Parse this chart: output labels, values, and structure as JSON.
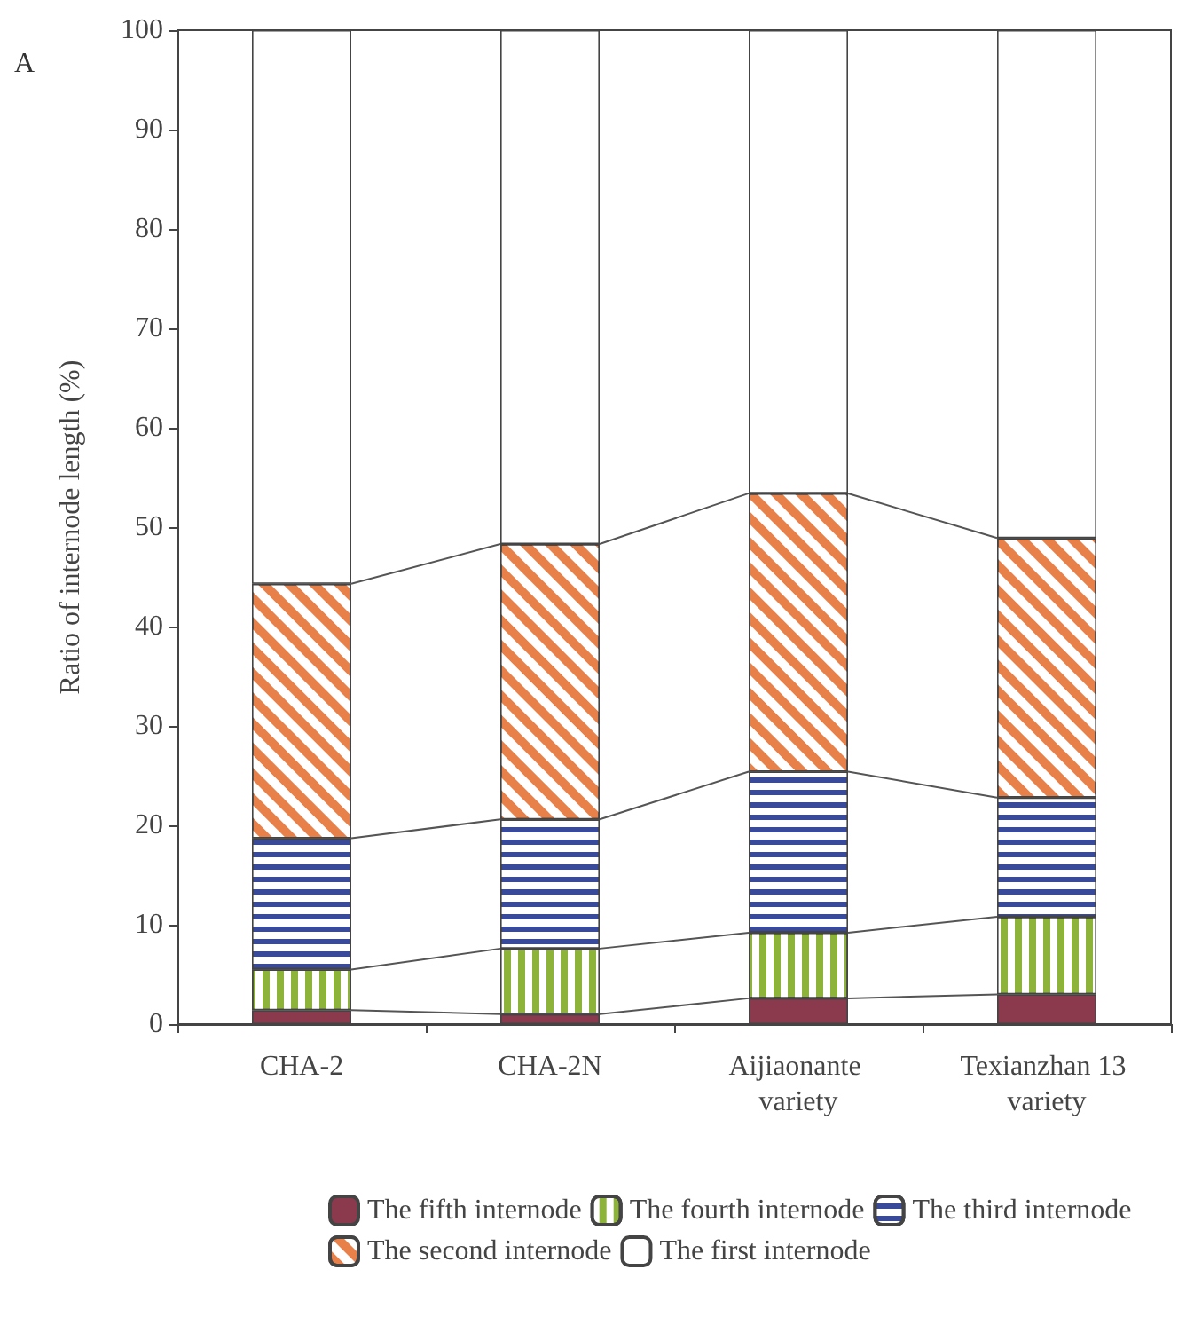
{
  "chart_data": {
    "type": "bar",
    "stacked": true,
    "ylabel": "Ratio of internode length (%)",
    "annotations": [
      "A"
    ],
    "categories": [
      "CHA-2",
      "CHA-2N",
      "Aijiaonante variety",
      "Texianzhan 13 variety"
    ],
    "series": [
      {
        "name": "The fifth internode",
        "color": "#8b3a4e",
        "values": [
          1.4,
          1.0,
          2.6,
          3.0
        ]
      },
      {
        "name": "The fourth internode",
        "color": "#8db33a",
        "values": [
          4.1,
          6.6,
          6.6,
          7.8
        ]
      },
      {
        "name": "The third internode",
        "color": "#3a4a9a",
        "values": [
          13.2,
          13.0,
          16.2,
          12.0
        ]
      },
      {
        "name": "The second internode",
        "color": "#e8804a",
        "values": [
          25.6,
          27.7,
          28.0,
          26.1
        ]
      },
      {
        "name": "The first internode",
        "color": "#ffffff",
        "values": [
          55.7,
          51.7,
          46.6,
          51.1
        ]
      }
    ],
    "ylim": [
      0,
      100
    ],
    "yticks": [
      0,
      10,
      20,
      30,
      40,
      50,
      60,
      70,
      80,
      90,
      100
    ],
    "grid": false,
    "legend": "bottom"
  }
}
